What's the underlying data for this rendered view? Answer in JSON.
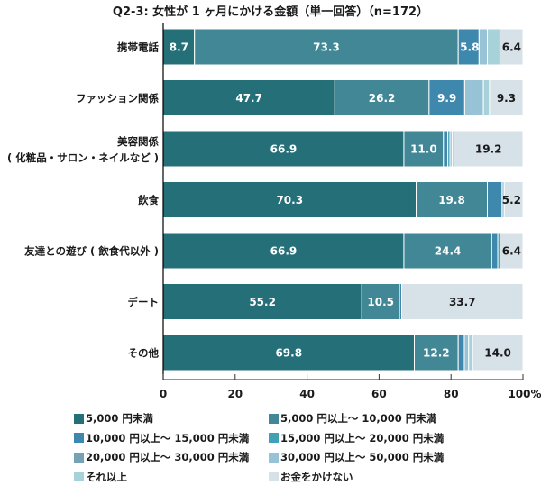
{
  "chart_data": {
    "type": "bar",
    "orientation": "horizontal-stacked-100",
    "title": "Q2-3: 女性が 1 ヶ月にかける金額（単一回答）（n=172）",
    "xlabel": "",
    "ylabel": "",
    "xlim": [
      0,
      100
    ],
    "x_ticks": [
      "0",
      "20",
      "40",
      "60",
      "80",
      "100%"
    ],
    "x_tick_values": [
      0,
      20,
      40,
      60,
      80,
      100
    ],
    "grid": false,
    "legend_position": "bottom",
    "categories": [
      [
        "携帯電話"
      ],
      [
        "ファッション関係"
      ],
      [
        "美容関係",
        "( 化粧品・サロン・ネイルなど )"
      ],
      [
        "飲食"
      ],
      [
        "友達との遊び ( 飲食代以外 )"
      ],
      [
        "デート"
      ],
      [
        "その他"
      ]
    ],
    "series": [
      {
        "name": "5,000 円未満",
        "color": "#256f79",
        "values": [
          8.7,
          47.7,
          66.9,
          70.3,
          66.9,
          55.2,
          69.8
        ],
        "labels": [
          "8.7",
          "47.7",
          "66.9",
          "70.3",
          "66.9",
          "55.2",
          "69.8"
        ]
      },
      {
        "name": "5,000 円以上～ 10,000 円未満",
        "color": "#428796",
        "values": [
          73.3,
          26.2,
          11.0,
          19.8,
          24.4,
          10.5,
          12.2
        ],
        "labels": [
          "73.3",
          "26.2",
          "11.0",
          "19.8",
          "24.4",
          "10.5",
          "12.2"
        ]
      },
      {
        "name": "10,000 円以上～ 15,000 円未満",
        "color": "#3f88ad",
        "values": [
          5.8,
          9.9,
          1.2,
          4.1,
          1.7,
          0.6,
          1.7
        ],
        "labels": [
          "5.8",
          "9.9",
          "",
          "",
          "",
          "",
          ""
        ]
      },
      {
        "name": "15,000 円以上～ 20,000 円未満",
        "color": "#41a0b4",
        "values": [
          0,
          0,
          0.6,
          0,
          0.6,
          0,
          0
        ],
        "labels": [
          "",
          "",
          "",
          "",
          "",
          "",
          ""
        ]
      },
      {
        "name": "20,000 円以上～ 30,000 円未満",
        "color": "#77a2b3",
        "values": [
          0,
          0,
          0,
          0,
          0,
          0,
          0
        ],
        "labels": [
          "",
          "",
          "",
          "",
          "",
          "",
          ""
        ]
      },
      {
        "name": "30,000 円以上～ 50,000 円未満",
        "color": "#98c2d6",
        "values": [
          2.3,
          5.2,
          0.6,
          0.6,
          0,
          0,
          1.2
        ],
        "labels": [
          "",
          "",
          "",
          "",
          "",
          "",
          ""
        ]
      },
      {
        "name": "それ以上",
        "color": "#a8d2da",
        "values": [
          3.5,
          1.7,
          0.5,
          0,
          0,
          0,
          1.1
        ],
        "labels": [
          "",
          "",
          "",
          "",
          "",
          "",
          ""
        ]
      },
      {
        "name": "お金をかけない",
        "color": "#d6e1e8",
        "values": [
          6.4,
          9.3,
          19.2,
          5.2,
          6.4,
          33.7,
          14.0
        ],
        "labels": [
          "6.4",
          "9.3",
          "19.2",
          "5.2",
          "6.4",
          "33.7",
          "14.0"
        ]
      }
    ]
  }
}
